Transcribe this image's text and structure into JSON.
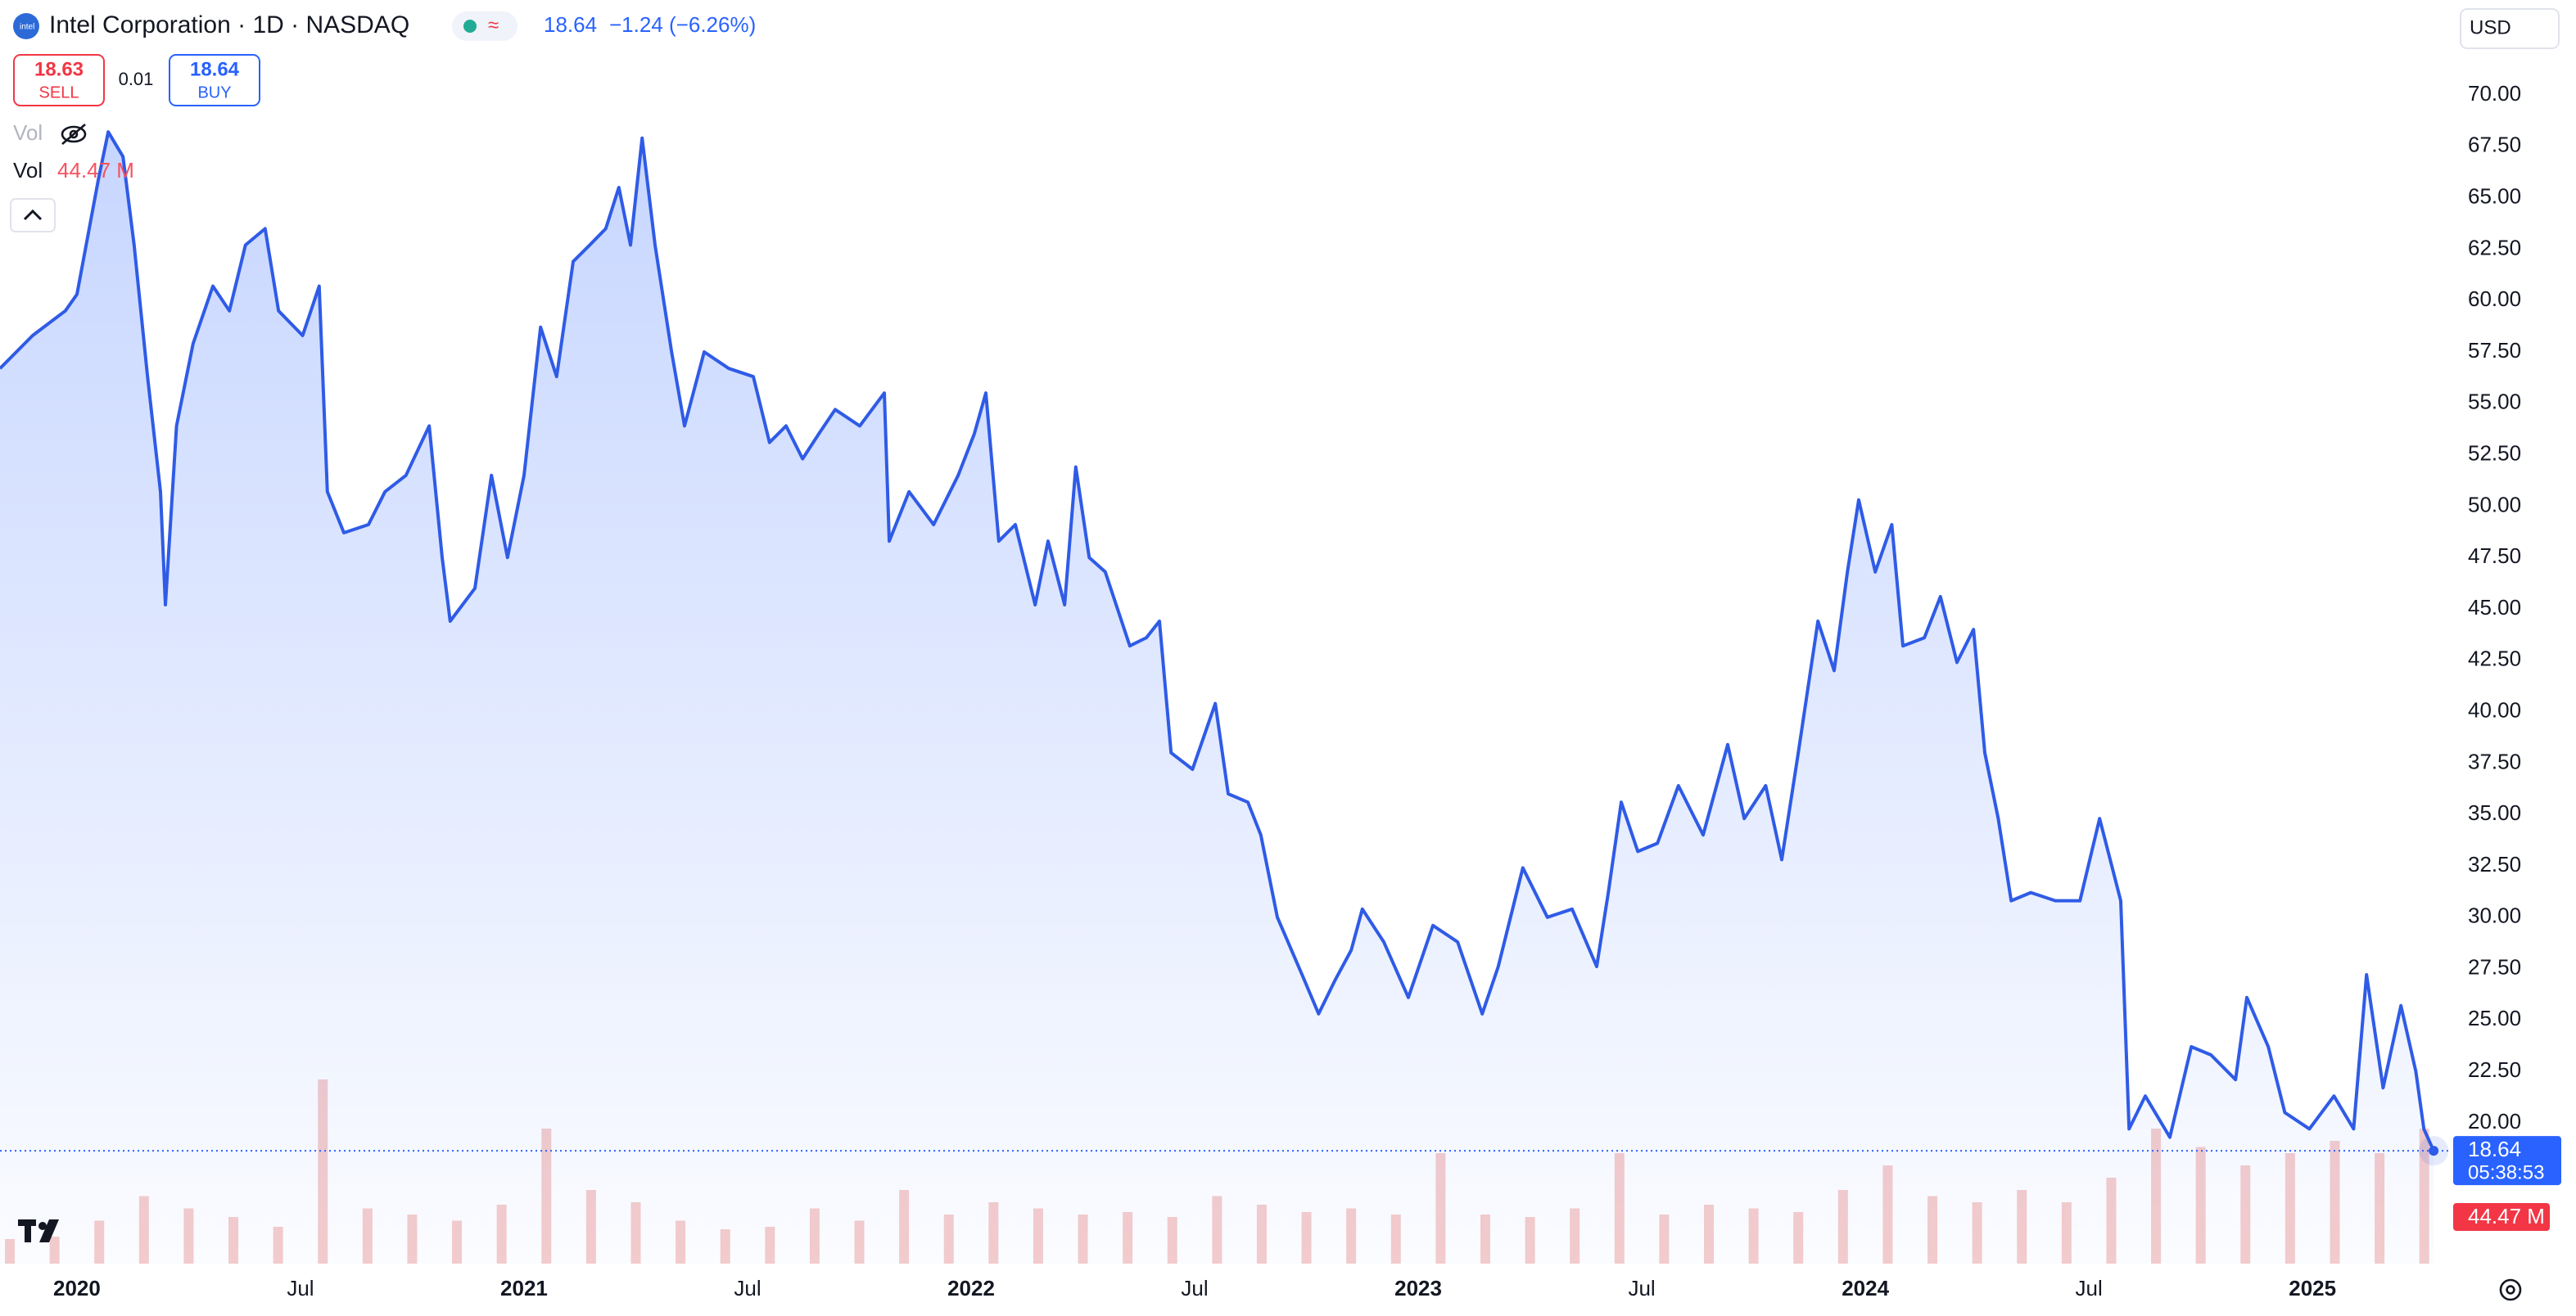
{
  "chart_data": {
    "type": "area",
    "title": "Intel Corporation · 1D · NASDAQ",
    "quote": {
      "last": "18.64",
      "change": "−1.24 (−6.26%)"
    },
    "sell": {
      "price": "18.63",
      "label": "SELL"
    },
    "spread": "0.01",
    "buy": {
      "price": "18.64",
      "label": "BUY"
    },
    "indicators": [
      {
        "name": "Vol"
      },
      {
        "name": "Vol",
        "value": "44.47 M"
      }
    ],
    "currency": "USD",
    "last_price": {
      "value": 18.64,
      "label": "18.64"
    },
    "countdown": "05:38:53",
    "last_volume": "44.47 M",
    "xlim": [
      2019.828,
      2025.311
    ],
    "xticks": [
      {
        "value": 2020,
        "label": "2020"
      },
      {
        "value": 2020.5,
        "label": "Jul"
      },
      {
        "value": 2021,
        "label": "2021"
      },
      {
        "value": 2021.5,
        "label": "Jul"
      },
      {
        "value": 2022,
        "label": "2022"
      },
      {
        "value": 2022.5,
        "label": "Jul"
      },
      {
        "value": 2023,
        "label": "2023"
      },
      {
        "value": 2023.5,
        "label": "Jul"
      },
      {
        "value": 2024,
        "label": "2024"
      },
      {
        "value": 2024.5,
        "label": "Jul"
      },
      {
        "value": 2025,
        "label": "2025"
      }
    ],
    "ylim": [
      13.15,
      74.62
    ],
    "yticks": [
      {
        "value": 20,
        "label": "20.00"
      },
      {
        "value": 22.5,
        "label": "22.50"
      },
      {
        "value": 25,
        "label": "25.00"
      },
      {
        "value": 27.5,
        "label": "27.50"
      },
      {
        "value": 30,
        "label": "30.00"
      },
      {
        "value": 32.5,
        "label": "32.50"
      },
      {
        "value": 35,
        "label": "35.00"
      },
      {
        "value": 37.5,
        "label": "37.50"
      },
      {
        "value": 40,
        "label": "40.00"
      },
      {
        "value": 42.5,
        "label": "42.50"
      },
      {
        "value": 45,
        "label": "45.00"
      },
      {
        "value": 47.5,
        "label": "47.50"
      },
      {
        "value": 50,
        "label": "50.00"
      },
      {
        "value": 52.5,
        "label": "52.50"
      },
      {
        "value": 55,
        "label": "55.00"
      },
      {
        "value": 57.5,
        "label": "57.50"
      },
      {
        "value": 60,
        "label": "60.00"
      },
      {
        "value": 62.5,
        "label": "62.50"
      },
      {
        "value": 65,
        "label": "65.00"
      },
      {
        "value": 67.5,
        "label": "67.50"
      },
      {
        "value": 70,
        "label": "70.00"
      }
    ],
    "x": [
      2019.828,
      2019.901,
      2019.974,
      2020.0,
      2020.048,
      2020.07,
      2020.103,
      2020.128,
      2020.158,
      2020.187,
      2020.198,
      2020.223,
      2020.26,
      2020.304,
      2020.341,
      2020.377,
      2020.421,
      2020.451,
      2020.505,
      2020.542,
      2020.56,
      2020.597,
      2020.652,
      2020.689,
      2020.736,
      2020.788,
      2020.817,
      2020.835,
      2020.89,
      2020.927,
      2020.963,
      2021.0,
      2021.037,
      2021.073,
      2021.11,
      2021.147,
      2021.183,
      2021.212,
      2021.238,
      2021.264,
      2021.293,
      2021.33,
      2021.359,
      2021.403,
      2021.458,
      2021.513,
      2021.549,
      2021.586,
      2021.623,
      2021.659,
      2021.696,
      2021.751,
      2021.806,
      2021.817,
      2021.861,
      2021.916,
      2021.971,
      2022.007,
      2022.033,
      2022.062,
      2022.099,
      2022.143,
      2022.172,
      2022.209,
      2022.234,
      2022.264,
      2022.3,
      2022.355,
      2022.392,
      2022.421,
      2022.447,
      2022.495,
      2022.546,
      2022.575,
      2022.619,
      2022.648,
      2022.685,
      2022.74,
      2022.777,
      2022.813,
      2022.85,
      2022.875,
      2022.923,
      2022.978,
      2023.033,
      2023.088,
      2023.143,
      2023.179,
      2023.234,
      2023.289,
      2023.344,
      2023.399,
      2023.425,
      2023.454,
      2023.491,
      2023.535,
      2023.582,
      2023.637,
      2023.692,
      2023.729,
      2023.777,
      2023.813,
      2023.85,
      2023.894,
      2023.93,
      2023.96,
      2023.985,
      2024.022,
      2024.059,
      2024.084,
      2024.132,
      2024.168,
      2024.205,
      2024.242,
      2024.267,
      2024.297,
      2024.326,
      2024.37,
      2024.425,
      2024.48,
      2024.524,
      2024.571,
      2024.59,
      2024.626,
      2024.681,
      2024.729,
      2024.773,
      2024.828,
      2024.853,
      2024.901,
      2024.938,
      2024.993,
      2025.048,
      2025.092,
      2025.121,
      2025.158,
      2025.198,
      2025.231,
      2025.249,
      2025.271
    ],
    "series": [
      {
        "color": "#2f5be6",
        "values": [
          56.7,
          58.3,
          59.5,
          60.3,
          65.9,
          68.2,
          67.0,
          62.7,
          56.3,
          50.7,
          45.2,
          53.9,
          57.9,
          60.7,
          59.5,
          62.7,
          63.5,
          59.5,
          58.3,
          60.7,
          50.7,
          48.7,
          49.1,
          50.7,
          51.5,
          53.9,
          47.5,
          44.4,
          46.0,
          51.5,
          47.5,
          51.5,
          58.7,
          56.3,
          61.9,
          62.7,
          63.5,
          65.5,
          62.7,
          67.9,
          62.7,
          57.5,
          53.9,
          57.5,
          56.7,
          56.3,
          53.1,
          53.9,
          52.3,
          53.5,
          54.7,
          53.9,
          55.5,
          48.3,
          50.7,
          49.1,
          51.5,
          53.5,
          55.5,
          48.3,
          49.1,
          45.2,
          48.3,
          45.2,
          51.9,
          47.5,
          46.8,
          43.2,
          43.6,
          44.4,
          38.0,
          37.2,
          40.4,
          36.0,
          35.6,
          34.0,
          30.0,
          27.2,
          25.3,
          26.9,
          28.4,
          30.4,
          28.8,
          26.1,
          29.6,
          28.8,
          25.3,
          27.6,
          32.4,
          30.0,
          30.4,
          27.6,
          31.2,
          35.6,
          33.2,
          33.6,
          36.4,
          34.0,
          38.4,
          34.8,
          36.4,
          32.8,
          38.0,
          44.4,
          42.0,
          46.8,
          50.3,
          46.8,
          49.1,
          43.2,
          43.6,
          45.6,
          42.4,
          44.0,
          38.0,
          34.8,
          30.8,
          31.2,
          30.8,
          30.8,
          34.8,
          30.8,
          19.7,
          21.3,
          19.3,
          23.7,
          23.3,
          22.1,
          26.1,
          23.7,
          20.5,
          19.7,
          21.3,
          19.7,
          27.2,
          21.7,
          25.7,
          22.5,
          19.7,
          18.64
        ]
      }
    ],
    "volume": {
      "color": "#f2b8b5",
      "ylim": [
        0,
        160
      ],
      "x": [
        2019.85,
        2019.95,
        2020.05,
        2020.15,
        2020.25,
        2020.35,
        2020.45,
        2020.55,
        2020.65,
        2020.75,
        2020.85,
        2020.95,
        2021.05,
        2021.15,
        2021.25,
        2021.35,
        2021.45,
        2021.55,
        2021.65,
        2021.75,
        2021.85,
        2021.95,
        2022.05,
        2022.15,
        2022.25,
        2022.35,
        2022.45,
        2022.55,
        2022.65,
        2022.75,
        2022.85,
        2022.95,
        2023.05,
        2023.15,
        2023.25,
        2023.35,
        2023.45,
        2023.55,
        2023.65,
        2023.75,
        2023.85,
        2023.95,
        2024.05,
        2024.15,
        2024.25,
        2024.35,
        2024.45,
        2024.55,
        2024.65,
        2024.75,
        2024.85,
        2024.95,
        2025.05,
        2025.15,
        2025.25
      ],
      "values": [
        20,
        22,
        35,
        55,
        45,
        38,
        30,
        150,
        45,
        40,
        35,
        48,
        110,
        60,
        50,
        35,
        28,
        30,
        45,
        35,
        60,
        40,
        50,
        45,
        40,
        42,
        38,
        55,
        48,
        42,
        45,
        40,
        90,
        40,
        38,
        45,
        90,
        40,
        48,
        45,
        42,
        60,
        80,
        55,
        50,
        60,
        50,
        70,
        110,
        95,
        80,
        90,
        100,
        90,
        110
      ]
    }
  }
}
